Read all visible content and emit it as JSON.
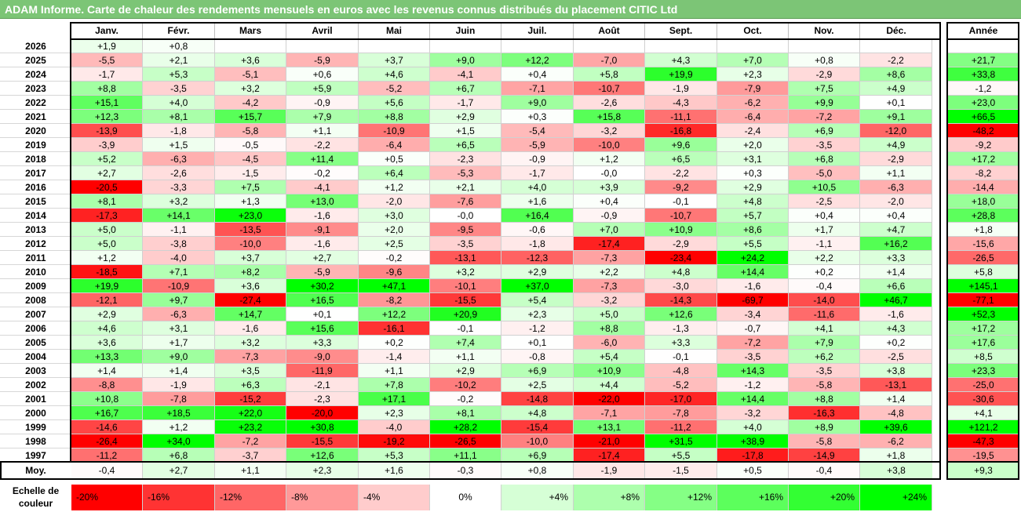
{
  "title": "ADAM Informe. Carte de chaleur des rendements mensuels en euros avec les revenus connus distribués du placement CITIC Ltd",
  "chart_data": {
    "type": "heatmap",
    "title": "ADAM Informe. Carte de chaleur des rendements mensuels en euros avec les revenus connus distribués du placement CITIC Ltd",
    "columns": [
      "Janv.",
      "Févr.",
      "Mars",
      "Avril",
      "Mai",
      "Juin",
      "Juil.",
      "Août",
      "Sept.",
      "Oct.",
      "Nov.",
      "Déc."
    ],
    "annual_header": "Année",
    "rows": [
      {
        "year": "2026",
        "values": [
          "+1,9",
          "+0,8",
          "",
          "",
          "",
          "",
          "",
          "",
          "",
          "",
          "",
          ""
        ],
        "annual": ""
      },
      {
        "year": "2025",
        "values": [
          "-5,5",
          "+2,1",
          "+3,6",
          "-5,9",
          "+3,7",
          "+9,0",
          "+12,2",
          "-7,0",
          "+4,3",
          "+7,0",
          "+0,8",
          "-2,2"
        ],
        "annual": "+21,7"
      },
      {
        "year": "2024",
        "values": [
          "-1,7",
          "+5,3",
          "-5,1",
          "+0,6",
          "+4,6",
          "-4,1",
          "+0,4",
          "+5,8",
          "+19,9",
          "+2,3",
          "-2,9",
          "+8,6"
        ],
        "annual": "+33,8"
      },
      {
        "year": "2023",
        "values": [
          "+8,8",
          "-3,5",
          "+3,2",
          "+5,9",
          "-5,2",
          "+6,7",
          "-7,1",
          "-10,7",
          "-1,9",
          "-7,9",
          "+7,5",
          "+4,9"
        ],
        "annual": "-1,2"
      },
      {
        "year": "2022",
        "values": [
          "+15,1",
          "+4,0",
          "-4,2",
          "-0,9",
          "+5,6",
          "-1,7",
          "+9,0",
          "-2,6",
          "-4,3",
          "-6,2",
          "+9,9",
          "+0,1"
        ],
        "annual": "+23,0"
      },
      {
        "year": "2021",
        "values": [
          "+12,3",
          "+8,1",
          "+15,7",
          "+7,9",
          "+8,8",
          "+2,9",
          "+0,3",
          "+15,8",
          "-11,1",
          "-6,4",
          "-7,2",
          "+9,1"
        ],
        "annual": "+66,5"
      },
      {
        "year": "2020",
        "values": [
          "-13,9",
          "-1,8",
          "-5,8",
          "+1,1",
          "-10,9",
          "+1,5",
          "-5,4",
          "-3,2",
          "-16,8",
          "-2,4",
          "+6,9",
          "-12,0"
        ],
        "annual": "-48,2"
      },
      {
        "year": "2019",
        "values": [
          "-3,9",
          "+1,5",
          "-0,5",
          "-2,2",
          "-6,4",
          "+6,5",
          "-5,9",
          "-10,0",
          "+9,6",
          "+2,0",
          "-3,5",
          "+4,9"
        ],
        "annual": "-9,2"
      },
      {
        "year": "2018",
        "values": [
          "+5,2",
          "-6,3",
          "-4,5",
          "+11,4",
          "+0,5",
          "-2,3",
          "-0,9",
          "+1,2",
          "+6,5",
          "+3,1",
          "+6,8",
          "-2,9"
        ],
        "annual": "+17,2"
      },
      {
        "year": "2017",
        "values": [
          "+2,7",
          "-2,6",
          "-1,5",
          "-0,2",
          "+6,4",
          "-5,3",
          "-1,7",
          "-0,0",
          "-2,2",
          "+0,3",
          "-5,0",
          "+1,1"
        ],
        "annual": "-8,2"
      },
      {
        "year": "2016",
        "values": [
          "-20,5",
          "-3,3",
          "+7,5",
          "-4,1",
          "+1,2",
          "+2,1",
          "+4,0",
          "+3,9",
          "-9,2",
          "+2,9",
          "+10,5",
          "-6,3"
        ],
        "annual": "-14,4"
      },
      {
        "year": "2015",
        "values": [
          "+8,1",
          "+3,2",
          "+1,3",
          "+13,0",
          "-2,0",
          "-7,6",
          "+1,6",
          "+0,4",
          "-0,1",
          "+4,8",
          "-2,5",
          "-2,0"
        ],
        "annual": "+18,0"
      },
      {
        "year": "2014",
        "values": [
          "-17,3",
          "+14,1",
          "+23,0",
          "-1,6",
          "+3,0",
          "-0,0",
          "+16,4",
          "-0,9",
          "-10,7",
          "+5,7",
          "+0,4",
          "+0,4"
        ],
        "annual": "+28,8"
      },
      {
        "year": "2013",
        "values": [
          "+5,0",
          "-1,1",
          "-13,5",
          "-9,1",
          "+2,0",
          "-9,5",
          "-0,6",
          "+7,0",
          "+10,9",
          "+8,6",
          "+1,7",
          "+4,7"
        ],
        "annual": "+1,8"
      },
      {
        "year": "2012",
        "values": [
          "+5,0",
          "-3,8",
          "-10,0",
          "-1,6",
          "+2,5",
          "-3,5",
          "-1,8",
          "-17,4",
          "-2,9",
          "+5,5",
          "-1,1",
          "+16,2"
        ],
        "annual": "-15,6"
      },
      {
        "year": "2011",
        "values": [
          "+1,2",
          "-4,0",
          "+3,7",
          "+2,7",
          "-0,2",
          "-13,1",
          "-12,3",
          "-7,3",
          "-23,4",
          "+24,2",
          "+2,2",
          "+3,3"
        ],
        "annual": "-26,5"
      },
      {
        "year": "2010",
        "values": [
          "-18,5",
          "+7,1",
          "+8,2",
          "-5,9",
          "-9,6",
          "+3,2",
          "+2,9",
          "+2,2",
          "+4,8",
          "+14,4",
          "+0,2",
          "+1,4"
        ],
        "annual": "+5,8"
      },
      {
        "year": "2009",
        "values": [
          "+19,9",
          "-10,9",
          "+3,6",
          "+30,2",
          "+47,1",
          "-10,1",
          "+37,0",
          "-7,3",
          "-3,0",
          "-1,6",
          "-0,4",
          "+6,6"
        ],
        "annual": "+145,1"
      },
      {
        "year": "2008",
        "values": [
          "-12,1",
          "+9,7",
          "-27,4",
          "+16,5",
          "-8,2",
          "-15,5",
          "+5,4",
          "-3,2",
          "-14,3",
          "-69,7",
          "-14,0",
          "+46,7"
        ],
        "annual": "-77,1"
      },
      {
        "year": "2007",
        "values": [
          "+2,9",
          "-6,3",
          "+14,7",
          "+0,1",
          "+12,2",
          "+20,9",
          "+2,3",
          "+5,0",
          "+12,6",
          "-3,4",
          "-11,6",
          "-1,6"
        ],
        "annual": "+52,3"
      },
      {
        "year": "2006",
        "values": [
          "+4,6",
          "+3,1",
          "-1,6",
          "+15,6",
          "-16,1",
          "-0,1",
          "-1,2",
          "+8,8",
          "-1,3",
          "-0,7",
          "+4,1",
          "+4,3"
        ],
        "annual": "+17,2"
      },
      {
        "year": "2005",
        "values": [
          "+3,6",
          "+1,7",
          "+3,2",
          "+3,3",
          "+0,2",
          "+7,4",
          "+0,1",
          "-6,0",
          "+3,3",
          "-7,2",
          "+7,9",
          "+0,2"
        ],
        "annual": "+17,6"
      },
      {
        "year": "2004",
        "values": [
          "+13,3",
          "+9,0",
          "-7,3",
          "-9,0",
          "-1,4",
          "+1,1",
          "-0,8",
          "+5,4",
          "-0,1",
          "-3,5",
          "+6,2",
          "-2,5"
        ],
        "annual": "+8,5"
      },
      {
        "year": "2003",
        "values": [
          "+1,4",
          "+1,4",
          "+3,5",
          "-11,9",
          "+1,1",
          "+2,9",
          "+6,9",
          "+10,9",
          "-4,8",
          "+14,3",
          "-3,5",
          "+3,8"
        ],
        "annual": "+23,3"
      },
      {
        "year": "2002",
        "values": [
          "-8,8",
          "-1,9",
          "+6,3",
          "-2,1",
          "+7,8",
          "-10,2",
          "+2,5",
          "+4,4",
          "-5,2",
          "-1,2",
          "-5,8",
          "-13,1"
        ],
        "annual": "-25,0"
      },
      {
        "year": "2001",
        "values": [
          "+10,8",
          "-7,8",
          "-15,2",
          "-2,3",
          "+17,1",
          "-0,2",
          "-14,8",
          "-22,0",
          "-17,0",
          "+14,4",
          "+8,8",
          "+1,4"
        ],
        "annual": "-30,6"
      },
      {
        "year": "2000",
        "values": [
          "+16,7",
          "+18,5",
          "+22,0",
          "-20,0",
          "+2,3",
          "+8,1",
          "+4,8",
          "-7,1",
          "-7,8",
          "-3,2",
          "-16,3",
          "-4,8"
        ],
        "annual": "+4,1"
      },
      {
        "year": "1999",
        "values": [
          "-14,6",
          "+1,2",
          "+23,2",
          "+30,8",
          "-4,0",
          "+28,2",
          "-15,4",
          "+13,1",
          "-11,2",
          "+4,0",
          "+8,9",
          "+39,6"
        ],
        "annual": "+121,2"
      },
      {
        "year": "1998",
        "values": [
          "-26,4",
          "+34,0",
          "-7,2",
          "-15,5",
          "-19,2",
          "-26,5",
          "-10,0",
          "-21,0",
          "+31,5",
          "+38,9",
          "-5,8",
          "-6,2"
        ],
        "annual": "-47,3"
      },
      {
        "year": "1997",
        "values": [
          "-11,2",
          "+6,8",
          "-3,7",
          "+12,6",
          "+5,3",
          "+11,1",
          "+6,9",
          "-17,4",
          "+5,5",
          "-17,8",
          "-14,9",
          "+1,8"
        ],
        "annual": "-19,5"
      }
    ],
    "average": {
      "label": "Moy.",
      "values": [
        "-0,4",
        "+2,7",
        "+1,1",
        "+2,3",
        "+1,6",
        "-0,3",
        "+0,8",
        "-1,9",
        "-1,5",
        "+0,5",
        "-0,4",
        "+3,8"
      ],
      "annual": "+9,3"
    },
    "scale": {
      "label": "Echelle de couleur",
      "stops": [
        {
          "label": "-20%",
          "value": -20,
          "color": "#ff0000"
        },
        {
          "label": "-16%",
          "value": -16,
          "color": "#ff3333"
        },
        {
          "label": "-12%",
          "value": -12,
          "color": "#ff6666"
        },
        {
          "label": "-8%",
          "value": -8,
          "color": "#ff9999"
        },
        {
          "label": "-4%",
          "value": -4,
          "color": "#ffcccc"
        },
        {
          "label": "0%",
          "value": 0,
          "color": "#ffffff"
        },
        {
          "label": "+4%",
          "value": 4,
          "color": "#d6ffd6"
        },
        {
          "label": "+8%",
          "value": 8,
          "color": "#adffad"
        },
        {
          "label": "+12%",
          "value": 12,
          "color": "#85ff85"
        },
        {
          "label": "+16%",
          "value": 16,
          "color": "#5cff5c"
        },
        {
          "label": "+20%",
          "value": 20,
          "color": "#33ff33"
        },
        {
          "label": "+24%",
          "value": 24,
          "color": "#00ff00"
        }
      ]
    }
  }
}
